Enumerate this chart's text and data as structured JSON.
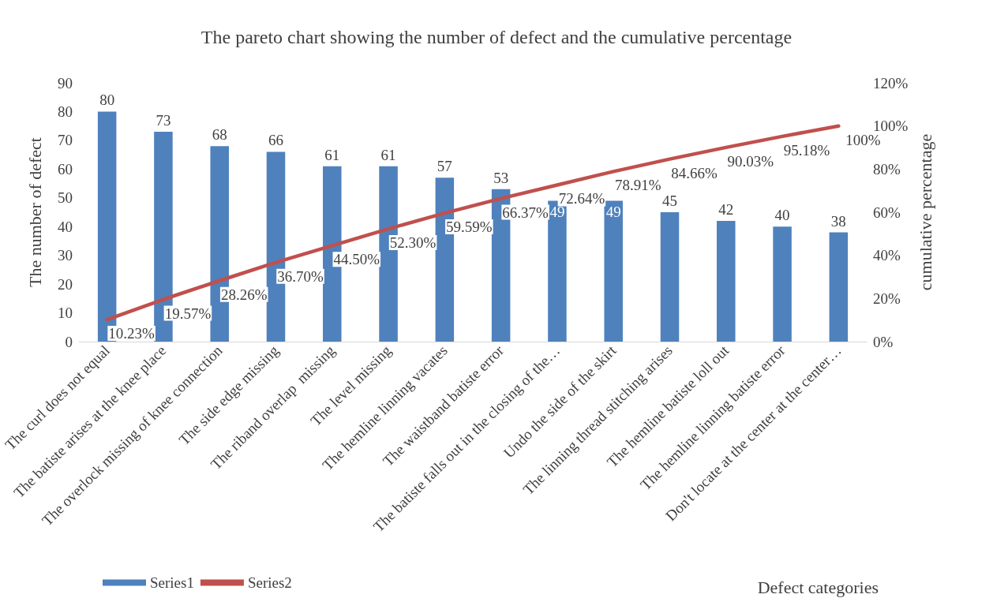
{
  "chart_data": {
    "type": "bar",
    "title": "The pareto chart showing the number of defect and the cumulative percentage",
    "xlabel": "Defect categories",
    "ylabel": "The number of defect",
    "y2label": "cumulative percentage",
    "categories": [
      "The curl does not equal",
      "The batiste arises at the knee place",
      "The overlock missing of knee connection",
      "The side edge missing",
      "The riband overlap  missing",
      "The level missing",
      "The hemline linning vacates",
      "The waistband batiste error",
      "The batiste falls out in the closing of the…",
      "Undo the side of the skirt",
      "The linning thread stitching arises",
      "The hemline batiste loll out",
      "The hemline linning batiste error",
      "Don't locate at the center at the center…"
    ],
    "series": [
      {
        "name": "Series1",
        "type": "bar",
        "color": "#4f81bd",
        "values": [
          80,
          73,
          68,
          66,
          61,
          61,
          57,
          53,
          49,
          49,
          45,
          42,
          40,
          38
        ],
        "value_labels": [
          "80",
          "73",
          "68",
          "66",
          "61",
          "61",
          "57",
          "53",
          "49",
          "49",
          "45",
          "42",
          "40",
          "38"
        ]
      },
      {
        "name": "Series2",
        "type": "line",
        "axis": "y2",
        "color": "#c0504d",
        "values": [
          10.23,
          19.57,
          28.26,
          36.7,
          44.5,
          52.3,
          59.59,
          66.37,
          72.64,
          78.91,
          84.66,
          90.03,
          95.18,
          100
        ],
        "value_labels": [
          "10.23%",
          "19.57%",
          "28.26%",
          "36.70%",
          "44.50%",
          "52.30%",
          "59.59%",
          "66.37%",
          "72.64%",
          "78.91%",
          "84.66%",
          "90.03%",
          "95.18%",
          "100%"
        ]
      }
    ],
    "ylim": [
      0,
      90
    ],
    "yticks": [
      0,
      10,
      20,
      30,
      40,
      50,
      60,
      70,
      80,
      90
    ],
    "y2lim": [
      0,
      120
    ],
    "y2ticks": [
      {
        "value": 0,
        "label": "0%"
      },
      {
        "value": 20,
        "label": "20%"
      },
      {
        "value": 40,
        "label": "40%"
      },
      {
        "value": 60,
        "label": "60%"
      },
      {
        "value": 80,
        "label": "80%"
      },
      {
        "value": 100,
        "label": "100%"
      },
      {
        "value": 120,
        "label": "120%"
      }
    ],
    "grid": false,
    "legend": "bottom left",
    "marker": "none",
    "line_style": "solid"
  }
}
